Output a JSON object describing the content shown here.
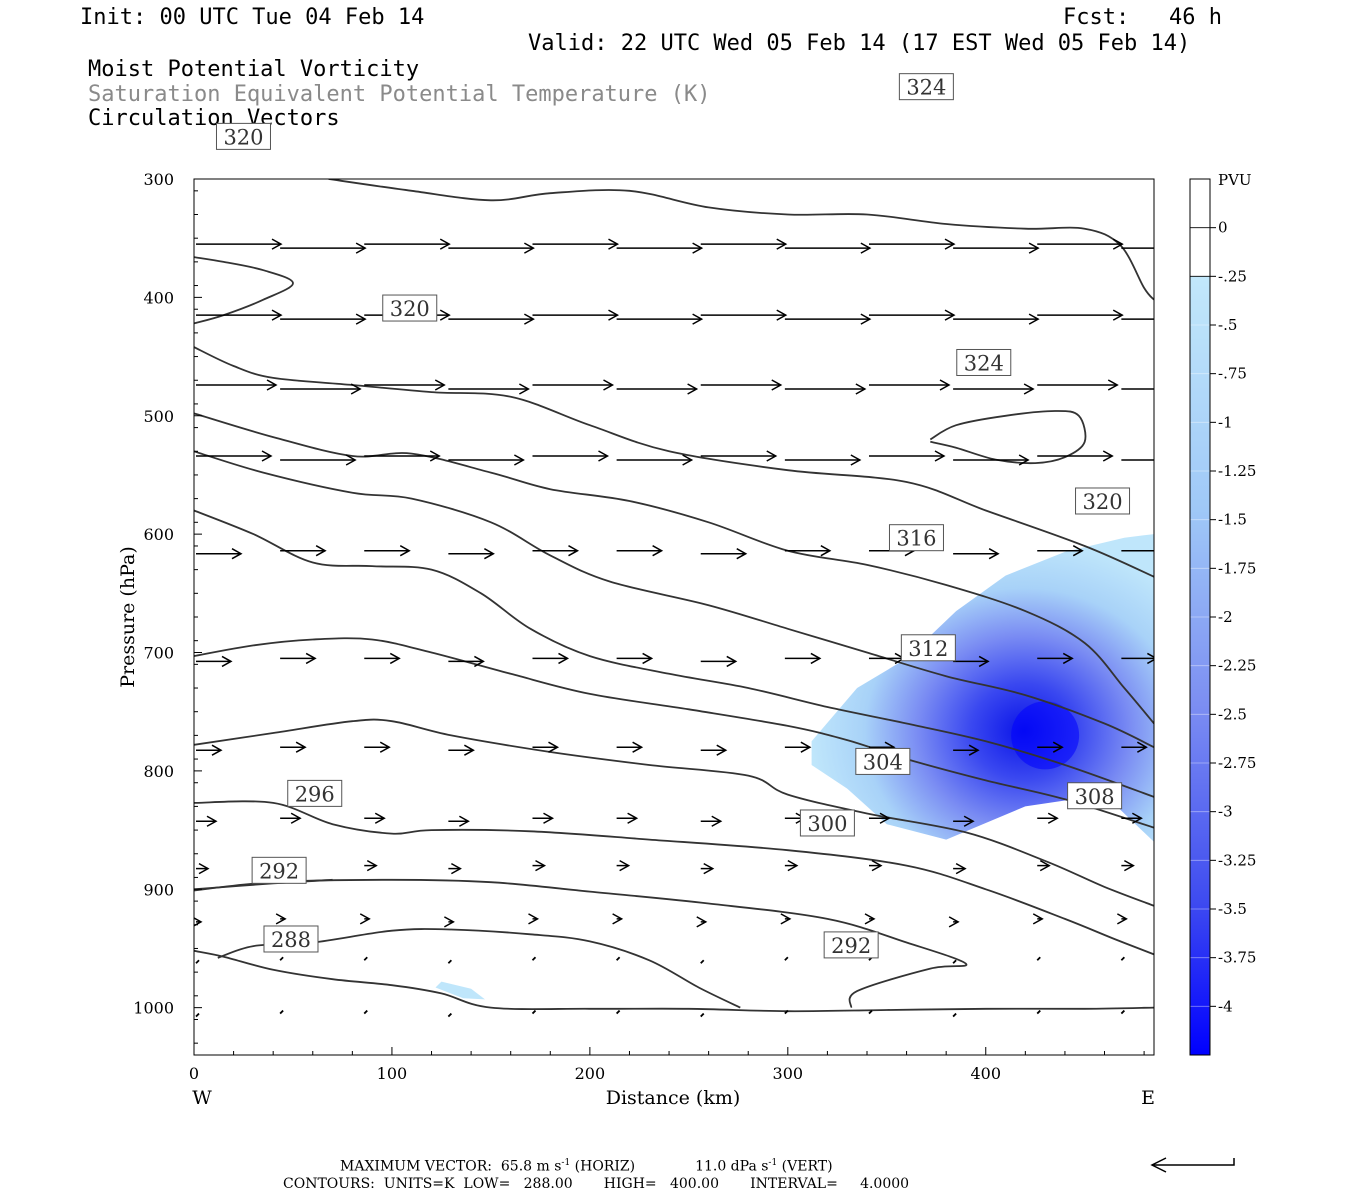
{
  "header": {
    "init": "Init: 00 UTC Tue 04 Feb 14",
    "fcst": "Fcst:   46 h",
    "valid": "Valid: 22 UTC Wed 05 Feb 14 (17 EST Wed 05 Feb 14)",
    "field1": "Moist Potential Vorticity",
    "field2": "Saturation Equivalent Potential Temperature (K)",
    "field3": "Circulation Vectors"
  },
  "colors": {
    "contour": "#333333",
    "shade_light": "#bfe6fb",
    "shade_dark": "#0000ff",
    "frame": "#000000"
  },
  "chart_data": {
    "type": "cross-section",
    "xlabel": "Distance (km)",
    "ylabel": "Pressure (hPa)",
    "xlim": [
      0,
      485
    ],
    "ylim": [
      300,
      1040
    ],
    "x_ticks": [
      0,
      100,
      200,
      300,
      400
    ],
    "y_ticks": [
      300,
      400,
      500,
      600,
      700,
      800,
      900,
      1000
    ],
    "x_end_labels": {
      "left": "W",
      "right": "E"
    },
    "colorbar": {
      "title": "PVU",
      "labels": [
        "0",
        "-.25",
        "-.5",
        "-.75",
        "-1",
        "-1.25",
        "-1.5",
        "-1.75",
        "-2",
        "-2.25",
        "-2.5",
        "-2.75",
        "-3",
        "-3.25",
        "-3.5",
        "-3.75",
        "-4"
      ],
      "levels": [
        0.25,
        0,
        -0.25,
        -0.5,
        -0.75,
        -1,
        -1.25,
        -1.5,
        -1.75,
        -2,
        -2.25,
        -2.5,
        -2.75,
        -3,
        -3.25,
        -3.5,
        -3.75,
        -4,
        -4.25
      ]
    },
    "contours": [
      {
        "label": "288",
        "points": [
          [
            0,
            952
          ],
          [
            15,
            957
          ],
          [
            40,
            968
          ],
          [
            70,
            976
          ],
          [
            100,
            981
          ],
          [
            125,
            988
          ],
          [
            150,
            1000
          ],
          [
            200,
            1001
          ],
          [
            250,
            1001
          ],
          [
            300,
            1003
          ],
          [
            350,
            1002
          ],
          [
            400,
            1001
          ],
          [
            450,
            1001
          ],
          [
            485,
            1000
          ]
        ],
        "label_at": [
          49,
          942
        ]
      },
      {
        "label": "288",
        "points": [
          [
            12,
            958
          ],
          [
            30,
            948
          ],
          [
            60,
            945
          ],
          [
            100,
            935
          ],
          [
            130,
            934
          ],
          [
            170,
            938
          ],
          [
            200,
            944
          ],
          [
            230,
            960
          ],
          [
            255,
            983
          ],
          [
            276,
            1000
          ]
        ],
        "label_at": null
      },
      {
        "label": "292",
        "points": [
          [
            0,
            901
          ],
          [
            40,
            894
          ],
          [
            100,
            892
          ],
          [
            150,
            894
          ],
          [
            200,
            902
          ],
          [
            260,
            912
          ],
          [
            320,
            925
          ],
          [
            360,
            945
          ],
          [
            390,
            963
          ],
          [
            372,
            967
          ],
          [
            335,
            986
          ],
          [
            332,
            1000
          ]
        ],
        "label_at": [
          332,
          947
        ]
      },
      {
        "label": "292",
        "points": [
          [
            0,
            900
          ],
          [
            40,
            895
          ],
          [
            70,
            892
          ]
        ],
        "label_at": [
          43,
          884
        ]
      },
      {
        "label": "296",
        "points": [
          [
            0,
            827
          ],
          [
            40,
            827
          ],
          [
            70,
            845
          ],
          [
            100,
            853
          ],
          [
            120,
            850
          ],
          [
            170,
            851
          ],
          [
            230,
            858
          ],
          [
            300,
            867
          ],
          [
            360,
            880
          ],
          [
            400,
            900
          ],
          [
            440,
            925
          ],
          [
            465,
            942
          ],
          [
            485,
            955
          ]
        ],
        "label_at": [
          61,
          819
        ]
      },
      {
        "label": "300",
        "points": [
          [
            0,
            778
          ],
          [
            40,
            768
          ],
          [
            80,
            758
          ],
          [
            100,
            758
          ],
          [
            130,
            770
          ],
          [
            180,
            784
          ],
          [
            230,
            795
          ],
          [
            280,
            804
          ],
          [
            300,
            820
          ],
          [
            340,
            836
          ],
          [
            390,
            852
          ],
          [
            430,
            876
          ],
          [
            460,
            898
          ],
          [
            485,
            914
          ]
        ],
        "label_at": [
          320,
          844
        ]
      },
      {
        "label": "304",
        "points": [
          [
            0,
            703
          ],
          [
            30,
            694
          ],
          [
            60,
            689
          ],
          [
            90,
            689
          ],
          [
            120,
            700
          ],
          [
            160,
            718
          ],
          [
            200,
            735
          ],
          [
            250,
            748
          ],
          [
            300,
            762
          ],
          [
            330,
            774
          ],
          [
            360,
            790
          ],
          [
            400,
            808
          ],
          [
            440,
            824
          ],
          [
            485,
            848
          ]
        ],
        "label_at": [
          348,
          792
        ]
      },
      {
        "label": "308",
        "points": [
          [
            0,
            580
          ],
          [
            30,
            600
          ],
          [
            60,
            624
          ],
          [
            90,
            627
          ],
          [
            120,
            630
          ],
          [
            145,
            650
          ],
          [
            170,
            680
          ],
          [
            200,
            703
          ],
          [
            240,
            718
          ],
          [
            280,
            730
          ],
          [
            320,
            746
          ],
          [
            360,
            760
          ],
          [
            400,
            775
          ],
          [
            440,
            795
          ],
          [
            485,
            822
          ]
        ],
        "label_at": [
          455,
          821
        ]
      },
      {
        "label": "312",
        "points": [
          [
            0,
            530
          ],
          [
            35,
            548
          ],
          [
            80,
            565
          ],
          [
            110,
            570
          ],
          [
            150,
            590
          ],
          [
            180,
            618
          ],
          [
            210,
            640
          ],
          [
            260,
            660
          ],
          [
            300,
            680
          ],
          [
            340,
            700
          ],
          [
            380,
            720
          ],
          [
            420,
            736
          ],
          [
            460,
            760
          ],
          [
            485,
            780
          ]
        ],
        "label_at": [
          371,
          696
        ]
      },
      {
        "label": "316",
        "points": [
          [
            0,
            498
          ],
          [
            40,
            518
          ],
          [
            80,
            534
          ],
          [
            110,
            532
          ],
          [
            150,
            548
          ],
          [
            180,
            562
          ],
          [
            220,
            572
          ],
          [
            260,
            590
          ],
          [
            300,
            614
          ],
          [
            340,
            626
          ],
          [
            380,
            643
          ],
          [
            420,
            665
          ],
          [
            450,
            692
          ],
          [
            470,
            730
          ],
          [
            485,
            760
          ]
        ],
        "label_at": [
          365,
          603
        ]
      },
      {
        "label": "320",
        "points": [
          [
            0,
            442
          ],
          [
            20,
            458
          ],
          [
            40,
            468
          ],
          [
            80,
            474
          ],
          [
            120,
            480
          ],
          [
            160,
            484
          ],
          [
            200,
            508
          ],
          [
            240,
            530
          ],
          [
            300,
            546
          ],
          [
            360,
            556
          ],
          [
            400,
            580
          ],
          [
            450,
            610
          ],
          [
            485,
            636
          ]
        ],
        "label_at": [
          459,
          572
        ]
      },
      {
        "label": "320",
        "points": [
          [
            0,
            422
          ],
          [
            15,
            415
          ],
          [
            35,
            402
          ],
          [
            50,
            388
          ],
          [
            35,
            377
          ],
          [
            15,
            370
          ],
          [
            0,
            366
          ]
        ],
        "label_at": [
          25,
          264
        ]
      },
      {
        "label": "324",
        "points": [
          [
            68,
            300
          ],
          [
            110,
            310
          ],
          [
            150,
            318
          ],
          [
            180,
            312
          ],
          [
            220,
            310
          ],
          [
            260,
            324
          ],
          [
            300,
            330
          ],
          [
            340,
            330
          ],
          [
            380,
            338
          ],
          [
            420,
            342
          ],
          [
            450,
            342
          ],
          [
            468,
            356
          ],
          [
            480,
            392
          ],
          [
            485,
            402
          ]
        ],
        "label_at": [
          370,
          222
        ]
      },
      {
        "label": "324",
        "points": [
          [
            372,
            520
          ],
          [
            385,
            508
          ],
          [
            410,
            500
          ],
          [
            435,
            496
          ],
          [
            447,
            500
          ],
          [
            450,
            522
          ],
          [
            440,
            535
          ],
          [
            425,
            540
          ],
          [
            405,
            537
          ],
          [
            385,
            527
          ],
          [
            372,
            522
          ]
        ],
        "label_at": [
          399,
          455
        ]
      }
    ],
    "inline_labels": [
      {
        "label": "320",
        "at": [
          109,
          409
        ]
      }
    ],
    "pv_negative_region": {
      "peak_value": -4.1,
      "peak_at": [
        430,
        770
      ],
      "approx_extent": {
        "x": [
          312,
          485
        ],
        "y": [
          600,
          860
        ]
      }
    },
    "vector_rows_hPa": [
      355,
      415,
      474,
      534,
      614,
      705,
      780,
      840,
      880,
      925,
      960,
      1005
    ],
    "vector_row_lengths": [
      0.85,
      0.85,
      0.8,
      0.75,
      0.45,
      0.35,
      0.25,
      0.2,
      0.12,
      0.05,
      0.03,
      0.02
    ],
    "maximum_vector": {
      "horiz": "65.8",
      "horiz_units": "m s^-1 (HORIZ)",
      "vert": "11.0",
      "vert_units": "dPa s^-1 (VERT)"
    }
  },
  "footer": {
    "line1_prefix": "MAXIMUM VECTOR:  65.8 m s",
    "line1_horiz": " (HORIZ)",
    "line1_vert_prefix": "11.0 dPa s",
    "line1_vert": " (VERT)",
    "sup": "-1",
    "line2": "CONTOURS:  UNITS=K  LOW=   288.00       HIGH=   400.00       INTERVAL=     4.0000"
  }
}
